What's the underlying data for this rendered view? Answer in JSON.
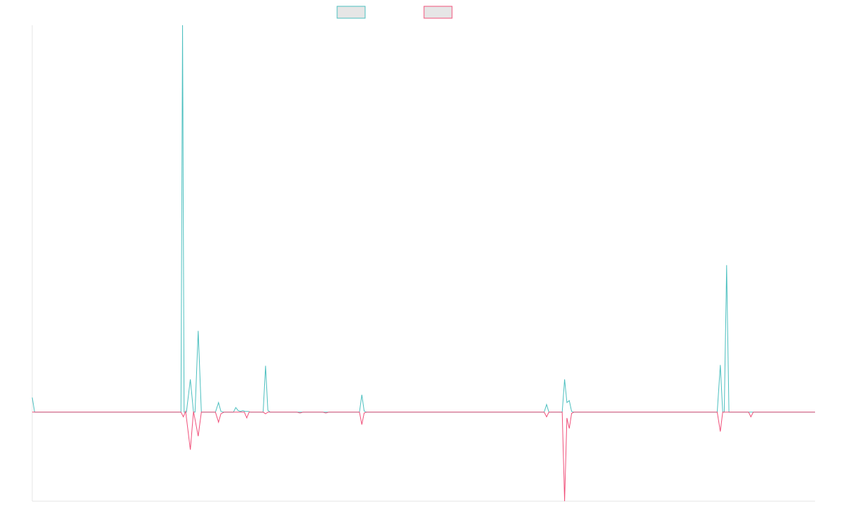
{
  "colors": {
    "series_a": "#4bbfbf",
    "series_b": "#f0507a",
    "legend_fill": "#e6e6e6",
    "axis": "#e4e4e4"
  },
  "chart_data": {
    "type": "line",
    "title": "",
    "xlabel": "",
    "ylabel": "",
    "grid": false,
    "legend_placement": "top-center",
    "xlim": [
      0,
      1000
    ],
    "ylim": [
      -2.3,
      10
    ],
    "series": [
      {
        "color_key": "series_a",
        "points": [
          [
            0,
            0.38
          ],
          [
            3,
            0
          ],
          [
            190,
            0
          ],
          [
            192,
            10
          ],
          [
            194,
            0
          ],
          [
            197,
            0
          ],
          [
            202,
            0.85
          ],
          [
            206,
            0
          ],
          [
            208,
            0
          ],
          [
            212,
            2.1
          ],
          [
            216,
            0
          ],
          [
            234,
            0
          ],
          [
            238,
            0.25
          ],
          [
            241,
            0.02
          ],
          [
            245,
            0
          ],
          [
            257,
            0
          ],
          [
            260,
            0.12
          ],
          [
            263,
            0.04
          ],
          [
            266,
            0.02
          ],
          [
            269,
            0.04
          ],
          [
            272,
            0.02
          ],
          [
            276,
            0.02
          ],
          [
            279,
            0
          ],
          [
            295,
            0
          ],
          [
            298,
            1.2
          ],
          [
            301,
            0.05
          ],
          [
            304,
            0
          ],
          [
            418,
            0
          ],
          [
            421,
            0.45
          ],
          [
            424,
            0.03
          ],
          [
            427,
            0
          ],
          [
            654,
            0
          ],
          [
            657,
            0.2
          ],
          [
            660,
            0
          ],
          [
            677,
            0
          ],
          [
            680,
            0.85
          ],
          [
            683,
            0.25
          ],
          [
            686,
            0.3
          ],
          [
            689,
            0.02
          ],
          [
            692,
            0
          ],
          [
            875,
            0
          ],
          [
            879,
            1.22
          ],
          [
            882,
            0
          ],
          [
            884,
            0
          ],
          [
            887,
            3.8
          ],
          [
            890,
            0
          ],
          [
            1000,
            0
          ]
        ]
      },
      {
        "color_key": "series_b",
        "points": [
          [
            0,
            0
          ],
          [
            190,
            0
          ],
          [
            193,
            -0.12
          ],
          [
            196,
            0.02
          ],
          [
            202,
            -0.97
          ],
          [
            206,
            0.02
          ],
          [
            212,
            -0.62
          ],
          [
            216,
            0
          ],
          [
            234,
            0
          ],
          [
            238,
            -0.26
          ],
          [
            241,
            -0.04
          ],
          [
            245,
            0
          ],
          [
            271,
            0
          ],
          [
            274,
            -0.15
          ],
          [
            277,
            0
          ],
          [
            295,
            0
          ],
          [
            298,
            -0.04
          ],
          [
            301,
            0
          ],
          [
            338,
            0
          ],
          [
            342,
            -0.02
          ],
          [
            346,
            0
          ],
          [
            371,
            0
          ],
          [
            375,
            -0.02
          ],
          [
            379,
            0
          ],
          [
            418,
            0
          ],
          [
            421,
            -0.32
          ],
          [
            424,
            -0.02
          ],
          [
            427,
            0
          ],
          [
            654,
            0
          ],
          [
            657,
            -0.12
          ],
          [
            660,
            0
          ],
          [
            677,
            0
          ],
          [
            680,
            -2.3
          ],
          [
            683,
            -0.15
          ],
          [
            686,
            -0.42
          ],
          [
            689,
            -0.03
          ],
          [
            692,
            0
          ],
          [
            875,
            0
          ],
          [
            879,
            -0.5
          ],
          [
            882,
            0
          ],
          [
            915,
            0
          ],
          [
            918,
            -0.12
          ],
          [
            921,
            0
          ],
          [
            1000,
            0
          ]
        ]
      }
    ]
  }
}
